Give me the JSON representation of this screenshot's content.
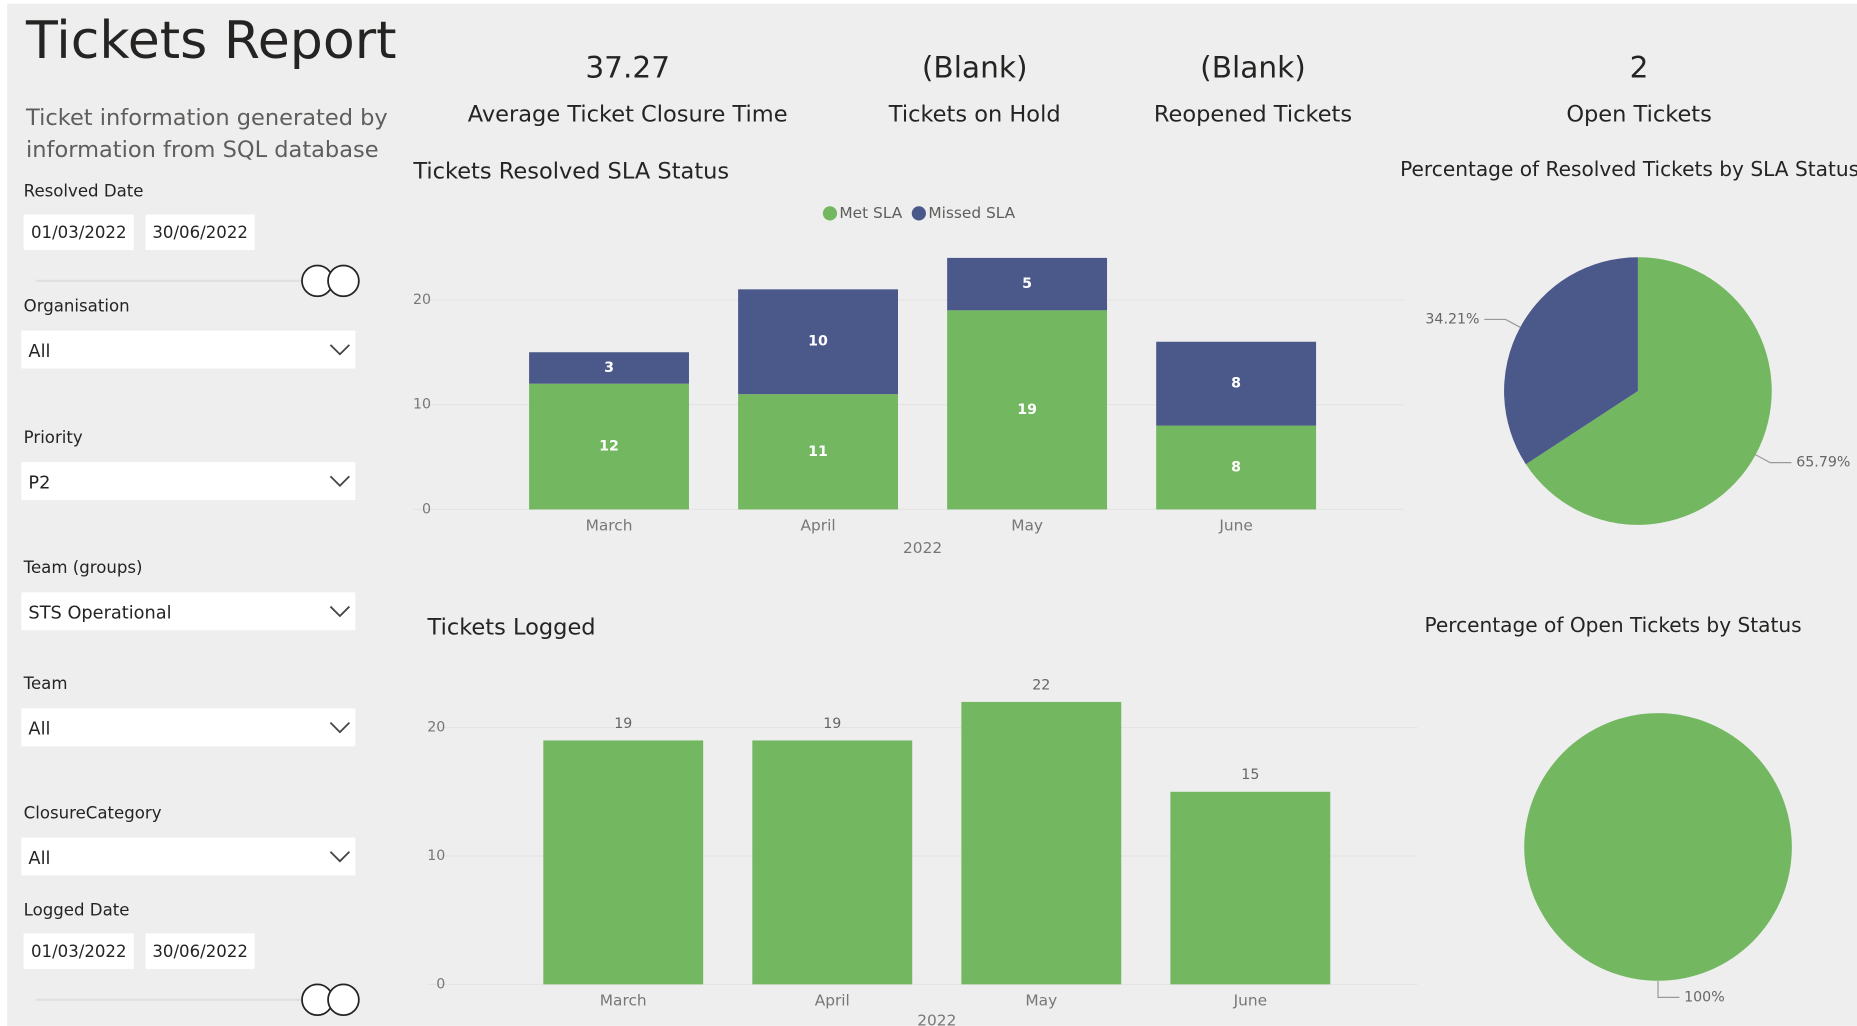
{
  "header": {
    "title": "Tickets Report",
    "subtitle": [
      "Ticket information generated by",
      "information from SQL database"
    ]
  },
  "slicers": [
    {
      "label": "Resolved Date",
      "from": "01/03/2022",
      "to": "30/06/2022"
    },
    {
      "label": "Organisation",
      "value": "All"
    },
    {
      "label": "Priority",
      "value": "P2"
    },
    {
      "label": "Team (groups)",
      "value": "STS Operational"
    },
    {
      "label": "Team",
      "value": "All"
    },
    {
      "label": "ClosureCategory",
      "value": "All"
    },
    {
      "label": "Logged Date",
      "from": "01/03/2022",
      "to": "30/06/2022"
    }
  ],
  "kpis": [
    {
      "value": 37.27,
      "label": "Average Ticket Closure Time"
    },
    {
      "value": "(Blank)",
      "label": "Tickets on Hold"
    },
    {
      "value": "(Blank)",
      "label": "Reopened Tickets"
    },
    {
      "value": 2,
      "label": "Open Tickets"
    }
  ],
  "chart_data": [
    {
      "type": "bar",
      "title": "Tickets Resolved SLA Status",
      "stacked": true,
      "legend": "top",
      "categories": [
        "March",
        "April",
        "May",
        "June"
      ],
      "x_label": "2022",
      "series": [
        {
          "name": "Met SLA",
          "color": "#73b761",
          "values": [
            12,
            11,
            19,
            8
          ]
        },
        {
          "name": "Missed SLA",
          "color": "#4a588a",
          "values": [
            3,
            10,
            5,
            8
          ]
        }
      ],
      "ylim": [
        0,
        25
      ],
      "yticks": [
        0,
        10,
        20
      ],
      "grid": true
    },
    {
      "type": "pie",
      "title": "Percentage of Resolved Tickets by SLA Status",
      "values": [
        65.79,
        34.21
      ],
      "value_labels": [
        "65.79%",
        "34.21%"
      ],
      "colors": [
        "#73b761",
        "#4a588a"
      ]
    },
    {
      "type": "bar",
      "title": "Tickets Logged",
      "categories": [
        "March",
        "April",
        "May",
        "June"
      ],
      "x_label": "2022",
      "values": [
        19,
        19,
        22,
        15
      ],
      "color": "#73b761",
      "ylim": [
        0,
        25
      ],
      "yticks": [
        0,
        10,
        20
      ],
      "grid": true
    },
    {
      "type": "pie",
      "title": "Percentage of Open Tickets by Status",
      "values": [
        100
      ],
      "value_labels": [
        "100%"
      ],
      "colors": [
        "#73b761"
      ]
    }
  ]
}
